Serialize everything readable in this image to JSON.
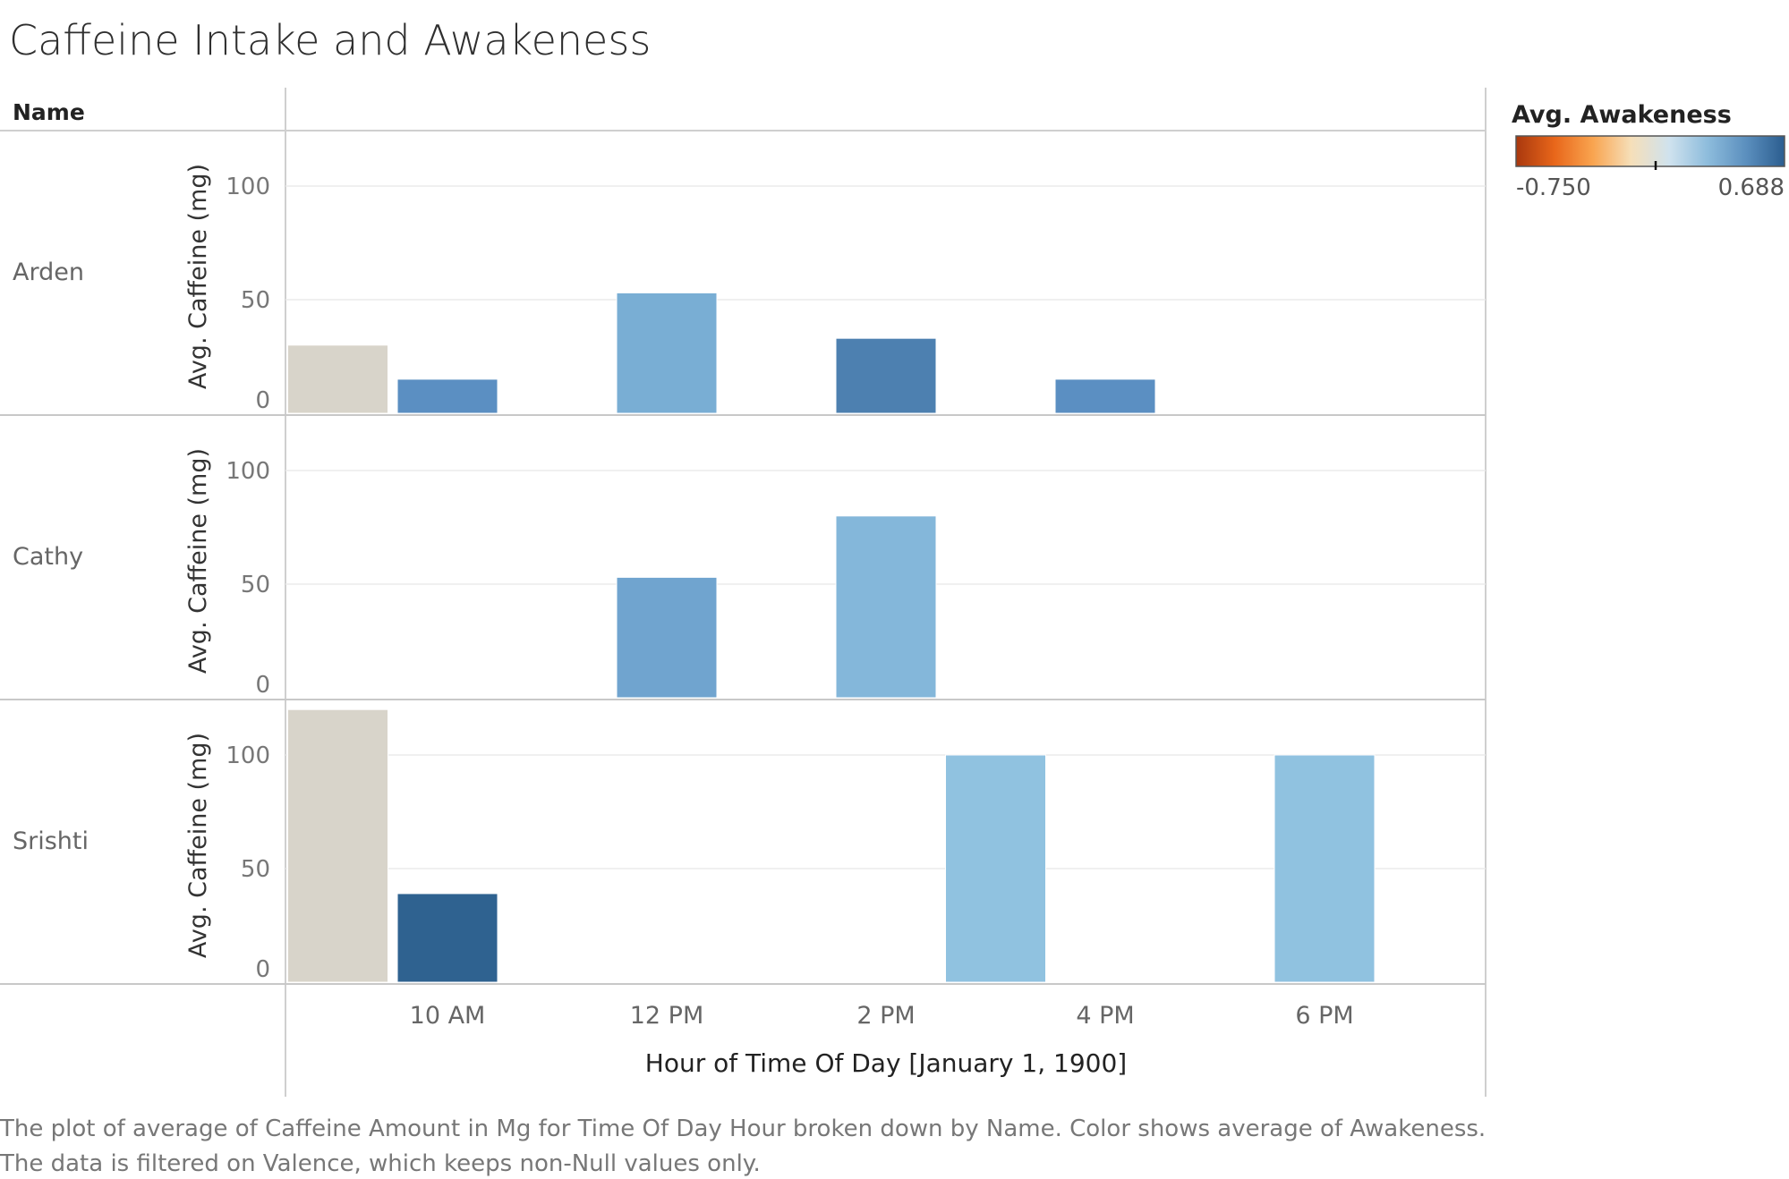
{
  "chart_data": {
    "type": "bar",
    "title": "Caffeine Intake and Awakeness",
    "row_header": "Name",
    "rows": [
      "Arden",
      "Cathy",
      "Srishti"
    ],
    "ylabel": "Avg. Caffeine (mg)",
    "yticks": [
      0,
      50,
      100
    ],
    "ylim": [
      0,
      125
    ],
    "xlabel": "Hour of Time Of Day [January 1, 1900]",
    "xticks": [
      "10 AM",
      "12 PM",
      "2 PM",
      "4 PM",
      "6 PM"
    ],
    "x_hours": [
      9,
      10,
      11,
      12,
      13,
      14,
      15,
      16,
      17,
      18
    ],
    "color_legend": {
      "title": "Avg. Awakeness",
      "min_label": "-0.750",
      "max_label": "0.688",
      "colors": [
        "#a9380e",
        "#e8661a",
        "#f9a44f",
        "#f6dfb9",
        "#cfe2ee",
        "#8dbcdc",
        "#5b8fbe",
        "#2b5d8f"
      ]
    },
    "series": [
      {
        "name": "Arden",
        "bars": [
          {
            "hour": "9 AM",
            "value": 30,
            "color": "#d8d4ca"
          },
          {
            "hour": "10 AM",
            "value": 15,
            "color": "#5b8fc2"
          },
          {
            "hour": "12 PM",
            "value": 53,
            "color": "#79aed4"
          },
          {
            "hour": "2 PM",
            "value": 33,
            "color": "#4d80b0"
          },
          {
            "hour": "4 PM",
            "value": 15,
            "color": "#5b8fc2"
          }
        ]
      },
      {
        "name": "Cathy",
        "bars": [
          {
            "hour": "12 PM",
            "value": 53,
            "color": "#70a4cf"
          },
          {
            "hour": "2 PM",
            "value": 80,
            "color": "#84b7da"
          }
        ]
      },
      {
        "name": "Srishti",
        "bars": [
          {
            "hour": "9 AM",
            "value": 120,
            "color": "#d8d4ca"
          },
          {
            "hour": "10 AM",
            "value": 39,
            "color": "#2f6290"
          },
          {
            "hour": "3 PM",
            "value": 100,
            "color": "#90c2e0"
          },
          {
            "hour": "6 PM",
            "value": 100,
            "color": "#90c2e0"
          }
        ]
      }
    ]
  },
  "caption": {
    "line1": "The plot of average of Caffeine Amount in Mg for Time Of Day Hour broken down by Name.  Color shows average of Awakeness.",
    "line2": "The data is filtered on Valence, which keeps non-Null values only."
  }
}
